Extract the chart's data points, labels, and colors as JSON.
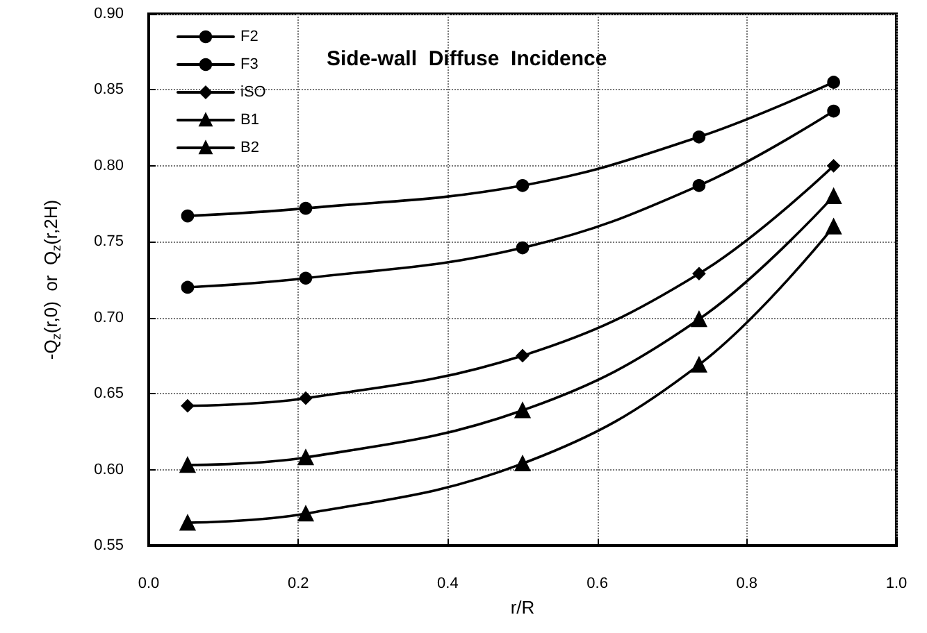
{
  "chart_data": {
    "type": "line",
    "title": "Side-wall  Diffuse  Incidence",
    "xlabel": "r/R",
    "ylabel": "-Q$_{z}$(r,0)  or  Q$_{z}$(r,2H)",
    "xlim": [
      0,
      1
    ],
    "xticks": [
      {
        "value": 0,
        "label": "0.0"
      },
      0.2,
      0.4,
      0.6,
      0.8,
      {
        "value": 1,
        "label": "1.0"
      }
    ],
    "ylim": [
      0.55,
      0.9
    ],
    "yticks": [
      0.55,
      {
        "value": 0.6,
        "label": "0.60"
      },
      0.65,
      {
        "value": 0.7,
        "label": "0.70"
      },
      0.75,
      {
        "value": 0.8,
        "label": "0.80"
      },
      0.85,
      {
        "value": 0.9,
        "label": "0.90"
      }
    ],
    "grid": true,
    "legend": "top left",
    "line_style": "solid",
    "series": [
      {
        "name": "F2",
        "color": "#000000",
        "marker": "circle",
        "x": [
          0.052,
          0.21,
          0.5,
          0.736,
          0.916
        ],
        "values": [
          0.767,
          0.772,
          0.787,
          0.819,
          0.855
        ]
      },
      {
        "name": "F3",
        "color": "#000000",
        "marker": "circle",
        "x": [
          0.052,
          0.21,
          0.5,
          0.736,
          0.916
        ],
        "values": [
          0.72,
          0.726,
          0.746,
          0.787,
          0.836
        ]
      },
      {
        "name": "iSO",
        "color": "#000000",
        "marker": "diamond",
        "x": [
          0.052,
          0.21,
          0.5,
          0.736,
          0.916
        ],
        "values": [
          0.642,
          0.647,
          0.675,
          0.729,
          0.8
        ]
      },
      {
        "name": "B1",
        "color": "#000000",
        "marker": "triangle",
        "x": [
          0.052,
          0.21,
          0.5,
          0.736,
          0.916
        ],
        "values": [
          0.603,
          0.608,
          0.639,
          0.699,
          0.78
        ]
      },
      {
        "name": "B2",
        "color": "#000000",
        "marker": "triangle",
        "x": [
          0.052,
          0.21,
          0.5,
          0.736,
          0.916
        ],
        "values": [
          0.565,
          0.571,
          0.604,
          0.669,
          0.76
        ]
      }
    ]
  }
}
